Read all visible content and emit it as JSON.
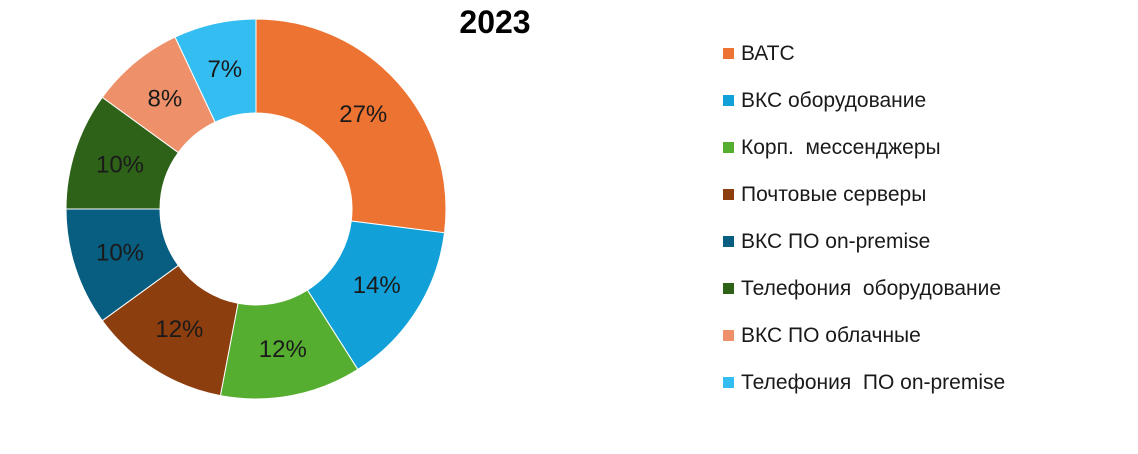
{
  "chart_data": {
    "type": "pie",
    "subtype": "donut",
    "title": "2023",
    "legend_position": "right",
    "categories": [
      "ВАТС",
      "ВКС оборудование",
      "Корп.  мессенджеры",
      "Почтовые серверы",
      "ВКС ПО on-premise",
      "Телефония  оборудование",
      "ВКС ПО облачные",
      "Телефония  ПО on-premise"
    ],
    "values": [
      27,
      14,
      12,
      12,
      10,
      10,
      8,
      7
    ],
    "value_labels": [
      "27%",
      "14%",
      "12%",
      "12%",
      "10%",
      "10%",
      "8%",
      "7%"
    ],
    "colors": [
      "#ED7332",
      "#12A0D9",
      "#56AE31",
      "#8D3E0E",
      "#075E80",
      "#2E6219",
      "#EE916A",
      "#34BDF0"
    ]
  }
}
